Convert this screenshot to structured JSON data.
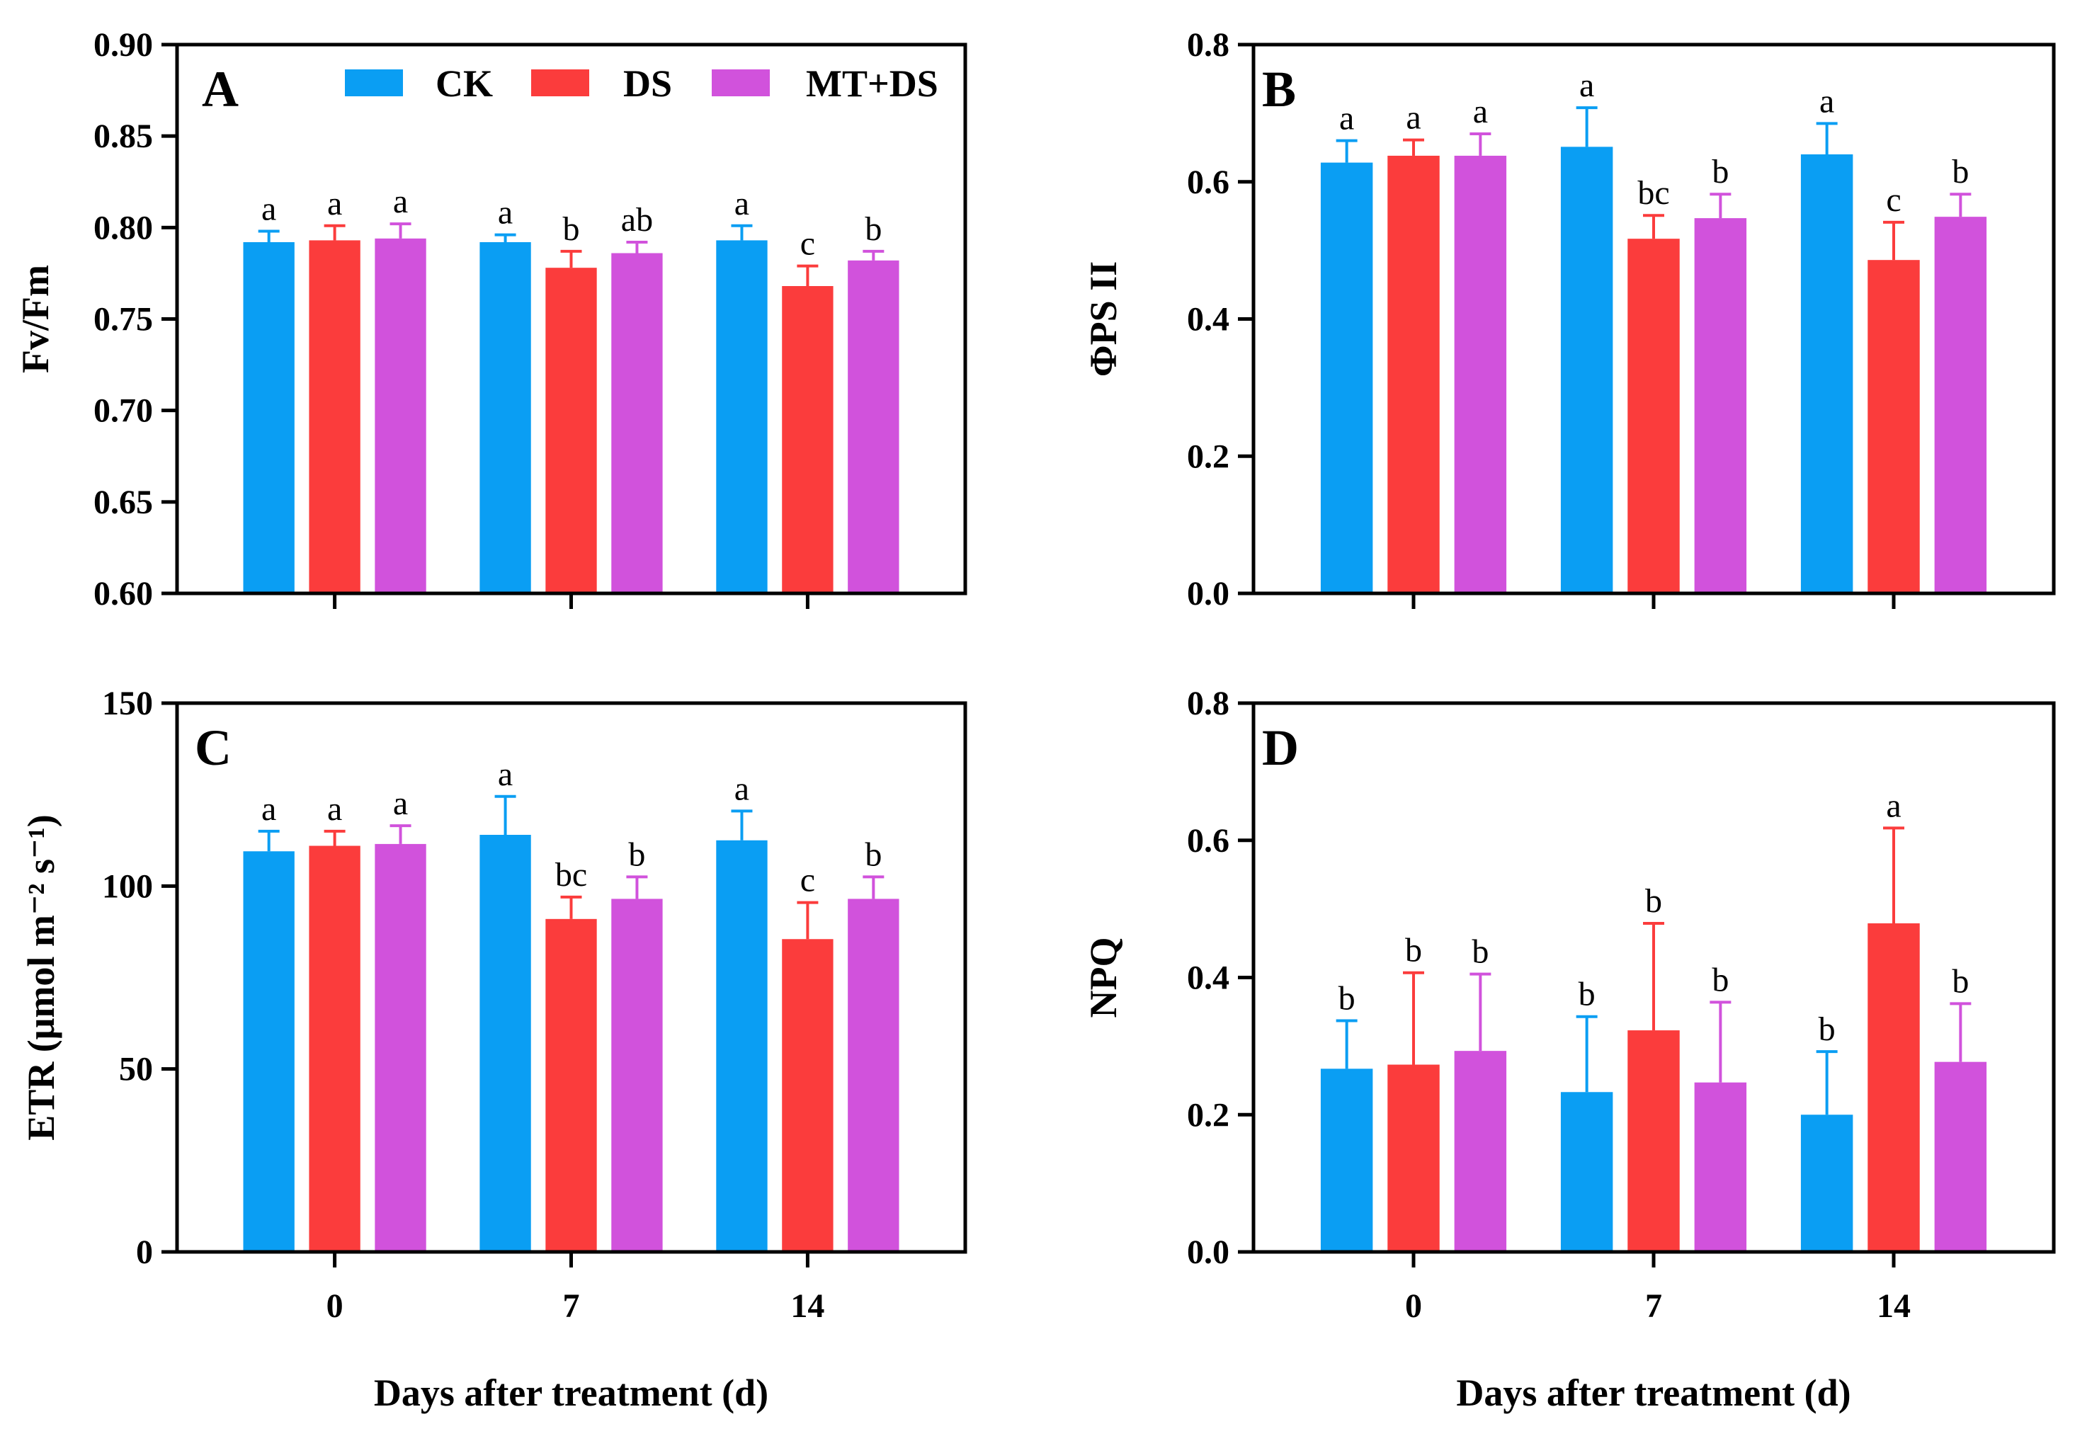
{
  "colors": {
    "CK": "#0A9EF3",
    "DS": "#FB3C3C",
    "MT+DS": "#D152DC"
  },
  "legend": [
    "CK",
    "DS",
    "MT+DS"
  ],
  "chart_data": [
    {
      "type": "bar",
      "panel": "A",
      "ylabel": "Fv/Fm",
      "xlabel": "",
      "ylim": [
        0.6,
        0.9
      ],
      "yticks": [
        "0.60",
        "0.65",
        "0.70",
        "0.75",
        "0.80",
        "0.85",
        "0.90"
      ],
      "categories": [
        "0",
        "7",
        "14"
      ],
      "show_xtick_labels": false,
      "series": [
        {
          "name": "CK",
          "values": [
            0.792,
            0.792,
            0.793
          ],
          "errors": [
            0.006,
            0.004,
            0.008
          ],
          "letters": [
            "a",
            "a",
            "a"
          ]
        },
        {
          "name": "DS",
          "values": [
            0.793,
            0.778,
            0.768
          ],
          "errors": [
            0.008,
            0.009,
            0.011
          ],
          "letters": [
            "a",
            "b",
            "c"
          ]
        },
        {
          "name": "MT+DS",
          "values": [
            0.794,
            0.786,
            0.782
          ],
          "errors": [
            0.008,
            0.006,
            0.005
          ],
          "letters": [
            "a",
            "ab",
            "b"
          ]
        }
      ]
    },
    {
      "type": "bar",
      "panel": "B",
      "ylabel": "ΦPS II",
      "xlabel": "",
      "ylim": [
        0,
        0.8
      ],
      "yticks": [
        "0.0",
        "0.2",
        "0.4",
        "0.6",
        "0.8"
      ],
      "categories": [
        "0",
        "7",
        "14"
      ],
      "show_xtick_labels": false,
      "series": [
        {
          "name": "CK",
          "values": [
            0.628,
            0.651,
            0.64
          ],
          "errors": [
            0.032,
            0.057,
            0.045
          ],
          "letters": [
            "a",
            "a",
            "a"
          ]
        },
        {
          "name": "DS",
          "values": [
            0.638,
            0.517,
            0.486
          ],
          "errors": [
            0.023,
            0.034,
            0.055
          ],
          "letters": [
            "a",
            "bc",
            "c"
          ]
        },
        {
          "name": "MT+DS",
          "values": [
            0.638,
            0.547,
            0.549
          ],
          "errors": [
            0.032,
            0.035,
            0.033
          ],
          "letters": [
            "a",
            "b",
            "b"
          ]
        }
      ]
    },
    {
      "type": "bar",
      "panel": "C",
      "ylabel": "ETR (μmol m⁻² s⁻¹)",
      "xlabel": "Days after treatment (d)",
      "ylim": [
        0,
        150
      ],
      "yticks": [
        "0",
        "50",
        "100",
        "150"
      ],
      "categories": [
        "0",
        "7",
        "14"
      ],
      "show_xtick_labels": true,
      "series": [
        {
          "name": "CK",
          "values": [
            109.5,
            114,
            112.5
          ],
          "errors": [
            5.5,
            10.5,
            8
          ],
          "letters": [
            "a",
            "a",
            "a"
          ]
        },
        {
          "name": "DS",
          "values": [
            111,
            91,
            85.5
          ],
          "errors": [
            4,
            6,
            10
          ],
          "letters": [
            "a",
            "bc",
            "c"
          ]
        },
        {
          "name": "MT+DS",
          "values": [
            111.5,
            96.5,
            96.5
          ],
          "errors": [
            5,
            6,
            6
          ],
          "letters": [
            "a",
            "b",
            "b"
          ]
        }
      ]
    },
    {
      "type": "bar",
      "panel": "D",
      "ylabel": "NPQ",
      "xlabel": "Days after treatment (d)",
      "ylim": [
        0,
        0.8
      ],
      "yticks": [
        "0.0",
        "0.2",
        "0.4",
        "0.6",
        "0.8"
      ],
      "categories": [
        "0",
        "7",
        "14"
      ],
      "show_xtick_labels": true,
      "series": [
        {
          "name": "CK",
          "values": [
            0.267,
            0.233,
            0.2
          ],
          "errors": [
            0.07,
            0.11,
            0.092
          ],
          "letters": [
            "b",
            "b",
            "b"
          ]
        },
        {
          "name": "DS",
          "values": [
            0.273,
            0.323,
            0.479
          ],
          "errors": [
            0.134,
            0.156,
            0.139
          ],
          "letters": [
            "b",
            "b",
            "a"
          ]
        },
        {
          "name": "MT+DS",
          "values": [
            0.293,
            0.247,
            0.277
          ],
          "errors": [
            0.112,
            0.117,
            0.085
          ],
          "letters": [
            "b",
            "b",
            "b"
          ]
        }
      ]
    }
  ]
}
